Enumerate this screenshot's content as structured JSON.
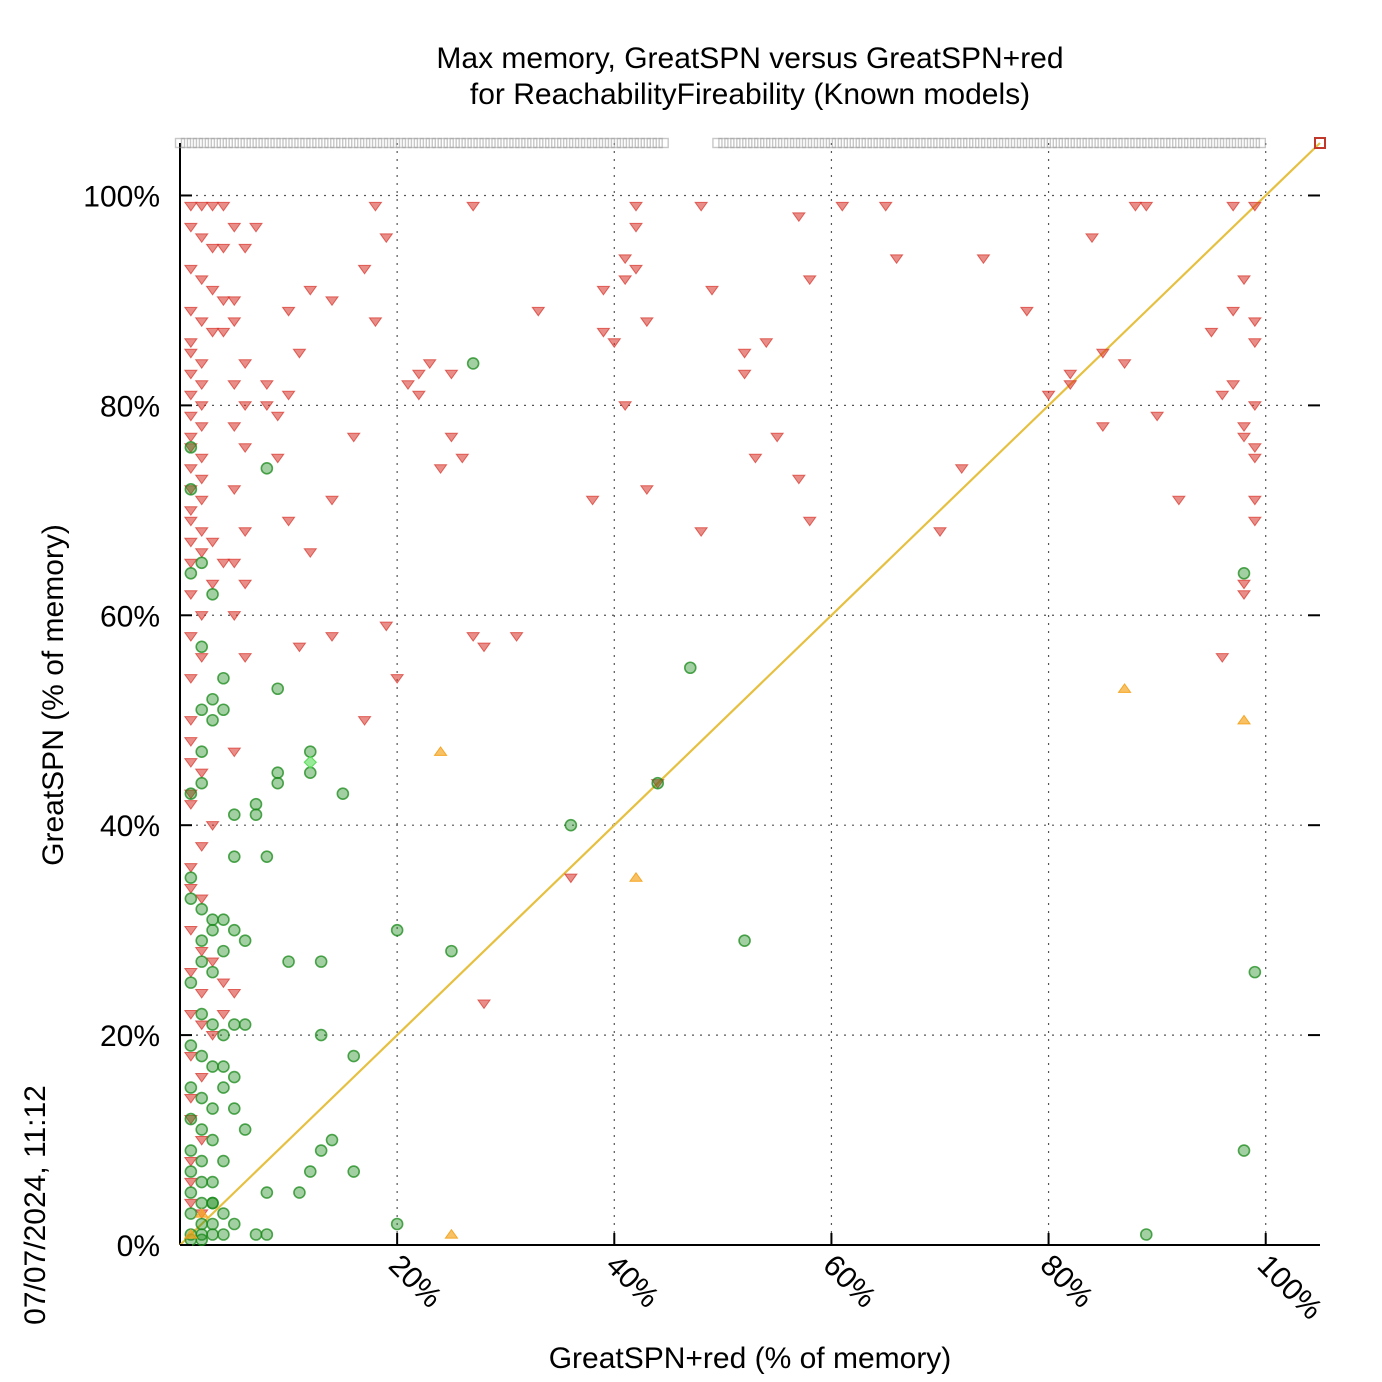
{
  "chart_data": {
    "type": "scatter",
    "title_line1": "Max memory, GreatSPN versus GreatSPN+red",
    "title_line2": "for ReachabilityFireability (Known models)",
    "xlabel": "GreatSPN+red (% of memory)",
    "ylabel": "GreatSPN (% of memory)",
    "timestamp": "07/07/2024, 11:12",
    "xlim": [
      0,
      105
    ],
    "ylim": [
      0,
      105
    ],
    "xticks": [
      {
        "value": 20,
        "label": "20%"
      },
      {
        "value": 40,
        "label": "40%"
      },
      {
        "value": 60,
        "label": "60%"
      },
      {
        "value": 80,
        "label": "80%"
      },
      {
        "value": 100,
        "label": "100%"
      }
    ],
    "yticks": [
      {
        "value": 0,
        "label": "0%"
      },
      {
        "value": 20,
        "label": "20%"
      },
      {
        "value": 40,
        "label": "40%"
      },
      {
        "value": 60,
        "label": "60%"
      },
      {
        "value": 80,
        "label": "80%"
      },
      {
        "value": 100,
        "label": "100%"
      }
    ],
    "grid": true,
    "diagonal": {
      "from": [
        0,
        0
      ],
      "to": [
        105,
        105
      ],
      "color": "#e6c040"
    },
    "colors": {
      "red_series": "#d73027",
      "green_series": "#1a8a1a",
      "orange_series": "#f5a623",
      "gray_series": "#999999",
      "light_green_series": "#55dd55"
    },
    "series": [
      {
        "marker": "triangle-down",
        "color": "#d73027",
        "points": [
          [
            1,
            99
          ],
          [
            2,
            99
          ],
          [
            3,
            99
          ],
          [
            4,
            99
          ],
          [
            1,
            97
          ],
          [
            2,
            96
          ],
          [
            3,
            95
          ],
          [
            4,
            95
          ],
          [
            1,
            93
          ],
          [
            2,
            92
          ],
          [
            3,
            91
          ],
          [
            4,
            90
          ],
          [
            1,
            89
          ],
          [
            2,
            88
          ],
          [
            3,
            87
          ],
          [
            4,
            87
          ],
          [
            1,
            86
          ],
          [
            1,
            85
          ],
          [
            2,
            84
          ],
          [
            1,
            83
          ],
          [
            2,
            82
          ],
          [
            1,
            81
          ],
          [
            2,
            80
          ],
          [
            1,
            79
          ],
          [
            2,
            78
          ],
          [
            1,
            77
          ],
          [
            1,
            76
          ],
          [
            2,
            75
          ],
          [
            1,
            74
          ],
          [
            2,
            73
          ],
          [
            1,
            72
          ],
          [
            2,
            71
          ],
          [
            1,
            70
          ],
          [
            1,
            69
          ],
          [
            2,
            68
          ],
          [
            1,
            67
          ],
          [
            2,
            66
          ],
          [
            1,
            65
          ],
          [
            3,
            67
          ],
          [
            4,
            65
          ],
          [
            3,
            63
          ],
          [
            1,
            62
          ],
          [
            2,
            60
          ],
          [
            1,
            58
          ],
          [
            2,
            56
          ],
          [
            1,
            54
          ],
          [
            1,
            50
          ],
          [
            1,
            48
          ],
          [
            1,
            46
          ],
          [
            2,
            45
          ],
          [
            1,
            43
          ],
          [
            1,
            42
          ],
          [
            3,
            40
          ],
          [
            2,
            38
          ],
          [
            1,
            36
          ],
          [
            1,
            34
          ],
          [
            2,
            33
          ],
          [
            1,
            30
          ],
          [
            2,
            28
          ],
          [
            1,
            26
          ],
          [
            2,
            24
          ],
          [
            1,
            22
          ],
          [
            2,
            21
          ],
          [
            1,
            18
          ],
          [
            2,
            16
          ],
          [
            1,
            14
          ],
          [
            1,
            12
          ],
          [
            2,
            10
          ],
          [
            1,
            8
          ],
          [
            1,
            6
          ],
          [
            1,
            4
          ],
          [
            2,
            3
          ],
          [
            5,
            97
          ],
          [
            6,
            95
          ],
          [
            5,
            90
          ],
          [
            5,
            88
          ],
          [
            6,
            84
          ],
          [
            5,
            82
          ],
          [
            6,
            80
          ],
          [
            5,
            78
          ],
          [
            6,
            76
          ],
          [
            5,
            72
          ],
          [
            6,
            68
          ],
          [
            5,
            65
          ],
          [
            6,
            63
          ],
          [
            5,
            60
          ],
          [
            6,
            56
          ],
          [
            5,
            47
          ],
          [
            5,
            24
          ],
          [
            4,
            22
          ],
          [
            3,
            20
          ],
          [
            3,
            27
          ],
          [
            4,
            25
          ],
          [
            7,
            97
          ],
          [
            8,
            80
          ],
          [
            8,
            82
          ],
          [
            9,
            79
          ],
          [
            10,
            81
          ],
          [
            9,
            75
          ],
          [
            10,
            69
          ],
          [
            10,
            89
          ],
          [
            11,
            85
          ],
          [
            11,
            57
          ],
          [
            12,
            66
          ],
          [
            12,
            91
          ],
          [
            14,
            90
          ],
          [
            14,
            71
          ],
          [
            14,
            58
          ],
          [
            18,
            99
          ],
          [
            19,
            96
          ],
          [
            17,
            93
          ],
          [
            18,
            88
          ],
          [
            16,
            77
          ],
          [
            17,
            50
          ],
          [
            19,
            59
          ],
          [
            20,
            54
          ],
          [
            21,
            82
          ],
          [
            22,
            81
          ],
          [
            22,
            83
          ],
          [
            23,
            84
          ],
          [
            24,
            74
          ],
          [
            25,
            83
          ],
          [
            25,
            77
          ],
          [
            26,
            75
          ],
          [
            27,
            99
          ],
          [
            27,
            58
          ],
          [
            28,
            57
          ],
          [
            28,
            23
          ],
          [
            31,
            58
          ],
          [
            33,
            89
          ],
          [
            36,
            35
          ],
          [
            38,
            71
          ],
          [
            39,
            87
          ],
          [
            39,
            91
          ],
          [
            40,
            86
          ],
          [
            41,
            80
          ],
          [
            41,
            94
          ],
          [
            41,
            92
          ],
          [
            42,
            93
          ],
          [
            42,
            97
          ],
          [
            42,
            99
          ],
          [
            43,
            88
          ],
          [
            43,
            72
          ],
          [
            44,
            44
          ],
          [
            48,
            68
          ],
          [
            48,
            99
          ],
          [
            49,
            91
          ],
          [
            52,
            83
          ],
          [
            52,
            85
          ],
          [
            53,
            75
          ],
          [
            54,
            86
          ],
          [
            55,
            77
          ],
          [
            57,
            73
          ],
          [
            57,
            98
          ],
          [
            58,
            69
          ],
          [
            58,
            92
          ],
          [
            61,
            99
          ],
          [
            65,
            99
          ],
          [
            66,
            94
          ],
          [
            70,
            68
          ],
          [
            72,
            74
          ],
          [
            74,
            94
          ],
          [
            78,
            89
          ],
          [
            80,
            81
          ],
          [
            82,
            83
          ],
          [
            82,
            82
          ],
          [
            84,
            96
          ],
          [
            85,
            78
          ],
          [
            85,
            85
          ],
          [
            87,
            84
          ],
          [
            88,
            99
          ],
          [
            89,
            99
          ],
          [
            90,
            79
          ],
          [
            92,
            71
          ],
          [
            95,
            87
          ],
          [
            96,
            81
          ],
          [
            96,
            56
          ],
          [
            97,
            99
          ],
          [
            97,
            82
          ],
          [
            97,
            89
          ],
          [
            98,
            92
          ],
          [
            98,
            78
          ],
          [
            98,
            77
          ],
          [
            98,
            63
          ],
          [
            98,
            62
          ],
          [
            99,
            99
          ],
          [
            99,
            88
          ],
          [
            99,
            86
          ],
          [
            99,
            80
          ],
          [
            99,
            76
          ],
          [
            99,
            75
          ],
          [
            99,
            71
          ],
          [
            99,
            69
          ]
        ]
      },
      {
        "marker": "circle",
        "color": "#1a8a1a",
        "points": [
          [
            1,
            76
          ],
          [
            1,
            72
          ],
          [
            1,
            64
          ],
          [
            2,
            65
          ],
          [
            3,
            62
          ],
          [
            2,
            57
          ],
          [
            4,
            54
          ],
          [
            3,
            52
          ],
          [
            2,
            51
          ],
          [
            3,
            50
          ],
          [
            4,
            51
          ],
          [
            2,
            47
          ],
          [
            1,
            43
          ],
          [
            2,
            44
          ],
          [
            1,
            35
          ],
          [
            1,
            33
          ],
          [
            2,
            32
          ],
          [
            3,
            31
          ],
          [
            2,
            29
          ],
          [
            3,
            30
          ],
          [
            4,
            31
          ],
          [
            5,
            30
          ],
          [
            6,
            29
          ],
          [
            2,
            27
          ],
          [
            3,
            26
          ],
          [
            4,
            28
          ],
          [
            1,
            25
          ],
          [
            2,
            22
          ],
          [
            3,
            21
          ],
          [
            4,
            20
          ],
          [
            5,
            21
          ],
          [
            6,
            21
          ],
          [
            1,
            19
          ],
          [
            2,
            18
          ],
          [
            3,
            17
          ],
          [
            4,
            17
          ],
          [
            5,
            16
          ],
          [
            1,
            15
          ],
          [
            2,
            14
          ],
          [
            3,
            13
          ],
          [
            1,
            12
          ],
          [
            2,
            11
          ],
          [
            3,
            10
          ],
          [
            1,
            9
          ],
          [
            2,
            8
          ],
          [
            4,
            8
          ],
          [
            1,
            7
          ],
          [
            2,
            6
          ],
          [
            3,
            6
          ],
          [
            1,
            5
          ],
          [
            2,
            4
          ],
          [
            3,
            4
          ],
          [
            1,
            3
          ],
          [
            2,
            2
          ],
          [
            3,
            2
          ],
          [
            1,
            1
          ],
          [
            2,
            1
          ],
          [
            3,
            1
          ],
          [
            1,
            0.5
          ],
          [
            2,
            0.5
          ],
          [
            4,
            1
          ],
          [
            5,
            37
          ],
          [
            5,
            41
          ],
          [
            7,
            42
          ],
          [
            7,
            41
          ],
          [
            8,
            37
          ],
          [
            8,
            74
          ],
          [
            9,
            53
          ],
          [
            9,
            45
          ],
          [
            9,
            44
          ],
          [
            10,
            27
          ],
          [
            12,
            47
          ],
          [
            12,
            45
          ],
          [
            13,
            27
          ],
          [
            13,
            20
          ],
          [
            15,
            43
          ],
          [
            14,
            10
          ],
          [
            13,
            9
          ],
          [
            12,
            7
          ],
          [
            11,
            5
          ],
          [
            8,
            5
          ],
          [
            8,
            1
          ],
          [
            7,
            1
          ],
          [
            16,
            18
          ],
          [
            16,
            7
          ],
          [
            20,
            30
          ],
          [
            20,
            2
          ],
          [
            25,
            28
          ],
          [
            27,
            84
          ],
          [
            36,
            40
          ],
          [
            44,
            44
          ],
          [
            47,
            55
          ],
          [
            52,
            29
          ],
          [
            89,
            1
          ],
          [
            98,
            64
          ],
          [
            98,
            9
          ],
          [
            99,
            26
          ],
          [
            6,
            11
          ],
          [
            5,
            13
          ],
          [
            4,
            15
          ],
          [
            3,
            4
          ],
          [
            5,
            2
          ],
          [
            4,
            3
          ]
        ]
      },
      {
        "marker": "triangle-up",
        "color": "#f5a623",
        "points": [
          [
            24,
            47
          ],
          [
            25,
            1
          ],
          [
            42,
            35
          ],
          [
            87,
            53
          ],
          [
            98,
            50
          ],
          [
            1,
            1
          ],
          [
            2,
            3
          ]
        ]
      },
      {
        "marker": "diamond",
        "color": "#55dd55",
        "points": [
          [
            12,
            46
          ]
        ]
      },
      {
        "marker": "square-open",
        "color": "#999999",
        "note_row": "overflow row at top",
        "points": [
          [
            105,
            105
          ]
        ]
      }
    ]
  }
}
